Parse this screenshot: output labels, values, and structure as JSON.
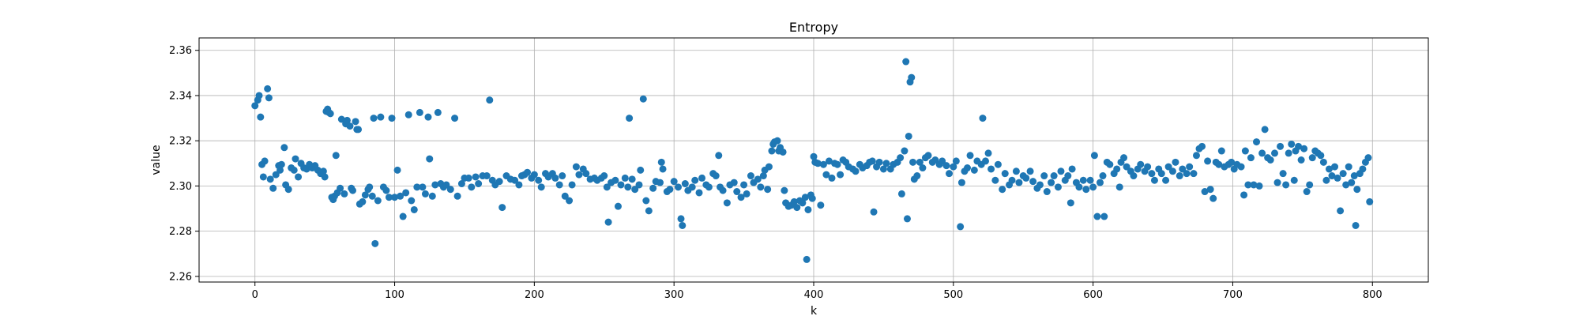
{
  "chart_data": {
    "type": "scatter",
    "title": "Entropy",
    "xlabel": "k",
    "ylabel": "value",
    "xlim": [
      -40,
      840
    ],
    "ylim": [
      2.2575,
      2.3655
    ],
    "xticks": [
      0,
      100,
      200,
      300,
      400,
      500,
      600,
      700,
      800
    ],
    "yticks": [
      2.26,
      2.28,
      2.3,
      2.32,
      2.34,
      2.36
    ],
    "xtick_labels": [
      "0",
      "100",
      "200",
      "300",
      "400",
      "500",
      "600",
      "700",
      "800"
    ],
    "ytick_labels": [
      "2.26",
      "2.28",
      "2.30",
      "2.32",
      "2.34",
      "2.36"
    ],
    "grid": true,
    "marker_color": "#1f77b4",
    "points": [
      [
        0,
        2.3355
      ],
      [
        2,
        2.338
      ],
      [
        3,
        2.34
      ],
      [
        4,
        2.3305
      ],
      [
        5,
        2.3095
      ],
      [
        6,
        2.304
      ],
      [
        7,
        2.311
      ],
      [
        9,
        2.343
      ],
      [
        10,
        2.339
      ],
      [
        11,
        2.303
      ],
      [
        13,
        2.299
      ],
      [
        15,
        2.305
      ],
      [
        17,
        2.309
      ],
      [
        18,
        2.307
      ],
      [
        19,
        2.3095
      ],
      [
        21,
        2.317
      ],
      [
        22,
        2.3005
      ],
      [
        24,
        2.2985
      ],
      [
        26,
        2.308
      ],
      [
        28,
        2.307
      ],
      [
        29,
        2.312
      ],
      [
        31,
        2.304
      ],
      [
        33,
        2.31
      ],
      [
        35,
        2.308
      ],
      [
        37,
        2.3075
      ],
      [
        39,
        2.3095
      ],
      [
        41,
        2.308
      ],
      [
        43,
        2.309
      ],
      [
        45,
        2.307
      ],
      [
        47,
        2.3055
      ],
      [
        49,
        2.3065
      ],
      [
        50,
        2.304
      ],
      [
        51,
        2.333
      ],
      [
        52,
        2.334
      ],
      [
        53,
        2.3325
      ],
      [
        54,
        2.332
      ],
      [
        55,
        2.295
      ],
      [
        56,
        2.294
      ],
      [
        57,
        2.2955
      ],
      [
        58,
        2.3135
      ],
      [
        59,
        2.297
      ],
      [
        61,
        2.299
      ],
      [
        62,
        2.3295
      ],
      [
        64,
        2.2965
      ],
      [
        65,
        2.3275
      ],
      [
        66,
        2.329
      ],
      [
        68,
        2.3265
      ],
      [
        69,
        2.299
      ],
      [
        70,
        2.298
      ],
      [
        72,
        2.3285
      ],
      [
        73,
        2.325
      ],
      [
        74,
        2.325
      ],
      [
        75,
        2.292
      ],
      [
        77,
        2.293
      ],
      [
        79,
        2.296
      ],
      [
        81,
        2.2985
      ],
      [
        82,
        2.2995
      ],
      [
        84,
        2.2955
      ],
      [
        85,
        2.33
      ],
      [
        86,
        2.2745
      ],
      [
        88,
        2.2935
      ],
      [
        90,
        2.3305
      ],
      [
        92,
        2.2995
      ],
      [
        94,
        2.298
      ],
      [
        96,
        2.295
      ],
      [
        98,
        2.33
      ],
      [
        100,
        2.295
      ],
      [
        102,
        2.307
      ],
      [
        104,
        2.2955
      ],
      [
        106,
        2.2865
      ],
      [
        108,
        2.297
      ],
      [
        110,
        2.3315
      ],
      [
        112,
        2.2935
      ],
      [
        114,
        2.2895
      ],
      [
        116,
        2.2995
      ],
      [
        118,
        2.3325
      ],
      [
        120,
        2.2995
      ],
      [
        122,
        2.2965
      ],
      [
        124,
        2.3305
      ],
      [
        125,
        2.312
      ],
      [
        127,
        2.2955
      ],
      [
        129,
        2.3005
      ],
      [
        131,
        2.3325
      ],
      [
        133,
        2.301
      ],
      [
        135,
        2.2995
      ],
      [
        137,
        2.3005
      ],
      [
        140,
        2.2985
      ],
      [
        143,
        2.33
      ],
      [
        145,
        2.2955
      ],
      [
        148,
        2.301
      ],
      [
        150,
        2.3035
      ],
      [
        153,
        2.3035
      ],
      [
        155,
        2.2995
      ],
      [
        158,
        2.304
      ],
      [
        160,
        2.301
      ],
      [
        163,
        2.3045
      ],
      [
        166,
        2.3045
      ],
      [
        168,
        2.338
      ],
      [
        170,
        2.3025
      ],
      [
        172,
        2.3005
      ],
      [
        175,
        2.302
      ],
      [
        177,
        2.2905
      ],
      [
        180,
        2.3045
      ],
      [
        183,
        2.303
      ],
      [
        186,
        2.3025
      ],
      [
        189,
        2.3005
      ],
      [
        191,
        2.3045
      ],
      [
        193,
        2.305
      ],
      [
        195,
        2.306
      ],
      [
        198,
        2.3035
      ],
      [
        200,
        2.305
      ],
      [
        203,
        2.3025
      ],
      [
        205,
        2.2995
      ],
      [
        208,
        2.3055
      ],
      [
        210,
        2.304
      ],
      [
        213,
        2.3055
      ],
      [
        215,
        2.3035
      ],
      [
        218,
        2.3005
      ],
      [
        220,
        2.3045
      ],
      [
        222,
        2.2955
      ],
      [
        225,
        2.2935
      ],
      [
        227,
        2.3005
      ],
      [
        230,
        2.3085
      ],
      [
        232,
        2.305
      ],
      [
        235,
        2.3075
      ],
      [
        237,
        2.3055
      ],
      [
        240,
        2.303
      ],
      [
        243,
        2.3035
      ],
      [
        245,
        2.3025
      ],
      [
        248,
        2.3035
      ],
      [
        250,
        2.3045
      ],
      [
        252,
        2.2995
      ],
      [
        253,
        2.284
      ],
      [
        255,
        2.3015
      ],
      [
        258,
        2.3025
      ],
      [
        260,
        2.291
      ],
      [
        262,
        2.3005
      ],
      [
        265,
        2.3035
      ],
      [
        267,
        2.2995
      ],
      [
        268,
        2.33
      ],
      [
        270,
        2.303
      ],
      [
        272,
        2.2985
      ],
      [
        275,
        2.3005
      ],
      [
        276,
        2.307
      ],
      [
        278,
        2.3385
      ],
      [
        280,
        2.2935
      ],
      [
        282,
        2.289
      ],
      [
        285,
        2.299
      ],
      [
        287,
        2.302
      ],
      [
        290,
        2.3015
      ],
      [
        291,
        2.3105
      ],
      [
        292,
        2.3075
      ],
      [
        295,
        2.2975
      ],
      [
        297,
        2.2985
      ],
      [
        300,
        2.302
      ],
      [
        303,
        2.2995
      ],
      [
        305,
        2.2855
      ],
      [
        306,
        2.2825
      ],
      [
        308,
        2.301
      ],
      [
        310,
        2.298
      ],
      [
        313,
        2.2995
      ],
      [
        315,
        2.3025
      ],
      [
        318,
        2.297
      ],
      [
        320,
        2.3035
      ],
      [
        323,
        2.3005
      ],
      [
        325,
        2.2995
      ],
      [
        328,
        2.3055
      ],
      [
        330,
        2.3045
      ],
      [
        332,
        2.3135
      ],
      [
        333,
        2.2995
      ],
      [
        335,
        2.298
      ],
      [
        338,
        2.2925
      ],
      [
        340,
        2.3005
      ],
      [
        343,
        2.3015
      ],
      [
        345,
        2.2975
      ],
      [
        348,
        2.295
      ],
      [
        350,
        2.3005
      ],
      [
        352,
        2.2965
      ],
      [
        355,
        2.3045
      ],
      [
        357,
        2.3015
      ],
      [
        360,
        2.303
      ],
      [
        362,
        2.2995
      ],
      [
        364,
        2.3045
      ],
      [
        365,
        2.307
      ],
      [
        367,
        2.2985
      ],
      [
        368,
        2.3085
      ],
      [
        370,
        2.3155
      ],
      [
        371,
        2.3185
      ],
      [
        372,
        2.3195
      ],
      [
        374,
        2.32
      ],
      [
        375,
        2.3155
      ],
      [
        376,
        2.317
      ],
      [
        378,
        2.315
      ],
      [
        379,
        2.298
      ],
      [
        380,
        2.2925
      ],
      [
        382,
        2.291
      ],
      [
        384,
        2.2915
      ],
      [
        386,
        2.293
      ],
      [
        388,
        2.2905
      ],
      [
        390,
        2.2935
      ],
      [
        392,
        2.2925
      ],
      [
        394,
        2.295
      ],
      [
        395,
        2.2675
      ],
      [
        396,
        2.2895
      ],
      [
        398,
        2.296
      ],
      [
        399,
        2.2945
      ],
      [
        400,
        2.313
      ],
      [
        401,
        2.3105
      ],
      [
        403,
        2.31
      ],
      [
        405,
        2.2915
      ],
      [
        407,
        2.3095
      ],
      [
        409,
        2.305
      ],
      [
        411,
        2.311
      ],
      [
        413,
        2.3035
      ],
      [
        415,
        2.31
      ],
      [
        417,
        2.3095
      ],
      [
        419,
        2.305
      ],
      [
        421,
        2.3115
      ],
      [
        423,
        2.3105
      ],
      [
        425,
        2.3085
      ],
      [
        428,
        2.3075
      ],
      [
        430,
        2.3065
      ],
      [
        433,
        2.3095
      ],
      [
        435,
        2.308
      ],
      [
        438,
        2.309
      ],
      [
        440,
        2.3105
      ],
      [
        442,
        2.311
      ],
      [
        443,
        2.2885
      ],
      [
        445,
        2.3085
      ],
      [
        447,
        2.3105
      ],
      [
        450,
        2.3075
      ],
      [
        452,
        2.31
      ],
      [
        455,
        2.3075
      ],
      [
        457,
        2.3095
      ],
      [
        460,
        2.3105
      ],
      [
        462,
        2.3125
      ],
      [
        463,
        2.2965
      ],
      [
        465,
        2.3155
      ],
      [
        466,
        2.355
      ],
      [
        467,
        2.2855
      ],
      [
        468,
        2.322
      ],
      [
        469,
        2.346
      ],
      [
        470,
        2.348
      ],
      [
        471,
        2.3105
      ],
      [
        472,
        2.303
      ],
      [
        474,
        2.3045
      ],
      [
        476,
        2.3105
      ],
      [
        478,
        2.308
      ],
      [
        480,
        2.3125
      ],
      [
        482,
        2.3135
      ],
      [
        485,
        2.3105
      ],
      [
        487,
        2.3115
      ],
      [
        490,
        2.3095
      ],
      [
        492,
        2.311
      ],
      [
        495,
        2.309
      ],
      [
        497,
        2.3055
      ],
      [
        500,
        2.3085
      ],
      [
        502,
        2.311
      ],
      [
        505,
        2.282
      ],
      [
        506,
        2.3015
      ],
      [
        508,
        2.3065
      ],
      [
        510,
        2.308
      ],
      [
        512,
        2.3135
      ],
      [
        515,
        2.307
      ],
      [
        517,
        2.311
      ],
      [
        520,
        2.3095
      ],
      [
        521,
        2.33
      ],
      [
        523,
        2.311
      ],
      [
        525,
        2.3145
      ],
      [
        527,
        2.3075
      ],
      [
        530,
        2.3025
      ],
      [
        532,
        2.3095
      ],
      [
        535,
        2.2985
      ],
      [
        537,
        2.3055
      ],
      [
        540,
        2.3005
      ],
      [
        542,
        2.3025
      ],
      [
        545,
        2.3065
      ],
      [
        547,
        2.3015
      ],
      [
        550,
        2.3045
      ],
      [
        552,
        2.3035
      ],
      [
        555,
        2.3065
      ],
      [
        557,
        2.302
      ],
      [
        560,
        2.299
      ],
      [
        562,
        2.3005
      ],
      [
        565,
        2.3045
      ],
      [
        567,
        2.2975
      ],
      [
        570,
        2.3015
      ],
      [
        572,
        2.3045
      ],
      [
        575,
        2.2995
      ],
      [
        577,
        2.3065
      ],
      [
        580,
        2.3025
      ],
      [
        582,
        2.3045
      ],
      [
        584,
        2.2925
      ],
      [
        585,
        2.3075
      ],
      [
        588,
        2.3015
      ],
      [
        590,
        2.2995
      ],
      [
        593,
        2.3025
      ],
      [
        595,
        2.2985
      ],
      [
        598,
        2.3025
      ],
      [
        600,
        2.2995
      ],
      [
        601,
        2.3135
      ],
      [
        603,
        2.2865
      ],
      [
        605,
        2.3015
      ],
      [
        607,
        2.3045
      ],
      [
        608,
        2.2865
      ],
      [
        610,
        2.3105
      ],
      [
        612,
        2.3095
      ],
      [
        615,
        2.3055
      ],
      [
        617,
        2.3075
      ],
      [
        619,
        2.2995
      ],
      [
        620,
        2.3105
      ],
      [
        622,
        2.3125
      ],
      [
        624,
        2.3085
      ],
      [
        627,
        2.3065
      ],
      [
        629,
        2.3045
      ],
      [
        632,
        2.3075
      ],
      [
        634,
        2.3095
      ],
      [
        637,
        2.3065
      ],
      [
        639,
        2.3085
      ],
      [
        642,
        2.3055
      ],
      [
        644,
        2.3025
      ],
      [
        647,
        2.3075
      ],
      [
        649,
        2.3055
      ],
      [
        652,
        2.3025
      ],
      [
        654,
        2.3085
      ],
      [
        657,
        2.3065
      ],
      [
        659,
        2.3105
      ],
      [
        662,
        2.3045
      ],
      [
        664,
        2.3075
      ],
      [
        667,
        2.3055
      ],
      [
        669,
        2.3085
      ],
      [
        672,
        2.3055
      ],
      [
        674,
        2.3135
      ],
      [
        676,
        2.3165
      ],
      [
        678,
        2.3175
      ],
      [
        680,
        2.2975
      ],
      [
        682,
        2.311
      ],
      [
        684,
        2.2985
      ],
      [
        686,
        2.2945
      ],
      [
        688,
        2.3105
      ],
      [
        690,
        2.3095
      ],
      [
        692,
        2.3155
      ],
      [
        694,
        2.3085
      ],
      [
        697,
        2.3095
      ],
      [
        699,
        2.3105
      ],
      [
        701,
        2.3075
      ],
      [
        703,
        2.3095
      ],
      [
        706,
        2.3085
      ],
      [
        708,
        2.296
      ],
      [
        709,
        2.3155
      ],
      [
        711,
        2.3005
      ],
      [
        713,
        2.3125
      ],
      [
        715,
        2.3005
      ],
      [
        717,
        2.3195
      ],
      [
        719,
        2.3
      ],
      [
        721,
        2.3145
      ],
      [
        723,
        2.325
      ],
      [
        725,
        2.3125
      ],
      [
        727,
        2.3115
      ],
      [
        730,
        2.3145
      ],
      [
        732,
        2.3015
      ],
      [
        734,
        2.3175
      ],
      [
        736,
        2.3055
      ],
      [
        738,
        2.3005
      ],
      [
        740,
        2.3145
      ],
      [
        742,
        2.3185
      ],
      [
        744,
        2.3025
      ],
      [
        745,
        2.3155
      ],
      [
        747,
        2.3175
      ],
      [
        749,
        2.3115
      ],
      [
        751,
        2.3165
      ],
      [
        753,
        2.2975
      ],
      [
        755,
        2.3005
      ],
      [
        757,
        2.3125
      ],
      [
        759,
        2.3155
      ],
      [
        761,
        2.3145
      ],
      [
        763,
        2.3135
      ],
      [
        765,
        2.3105
      ],
      [
        767,
        2.3025
      ],
      [
        769,
        2.3075
      ],
      [
        771,
        2.3045
      ],
      [
        773,
        2.3085
      ],
      [
        775,
        2.3035
      ],
      [
        777,
        2.289
      ],
      [
        779,
        2.3055
      ],
      [
        781,
        2.3005
      ],
      [
        783,
        2.3085
      ],
      [
        785,
        2.3015
      ],
      [
        787,
        2.3045
      ],
      [
        788,
        2.2825
      ],
      [
        789,
        2.2985
      ],
      [
        791,
        2.3055
      ],
      [
        793,
        2.3075
      ],
      [
        795,
        2.3105
      ],
      [
        797,
        2.3125
      ],
      [
        798,
        2.293
      ]
    ]
  }
}
